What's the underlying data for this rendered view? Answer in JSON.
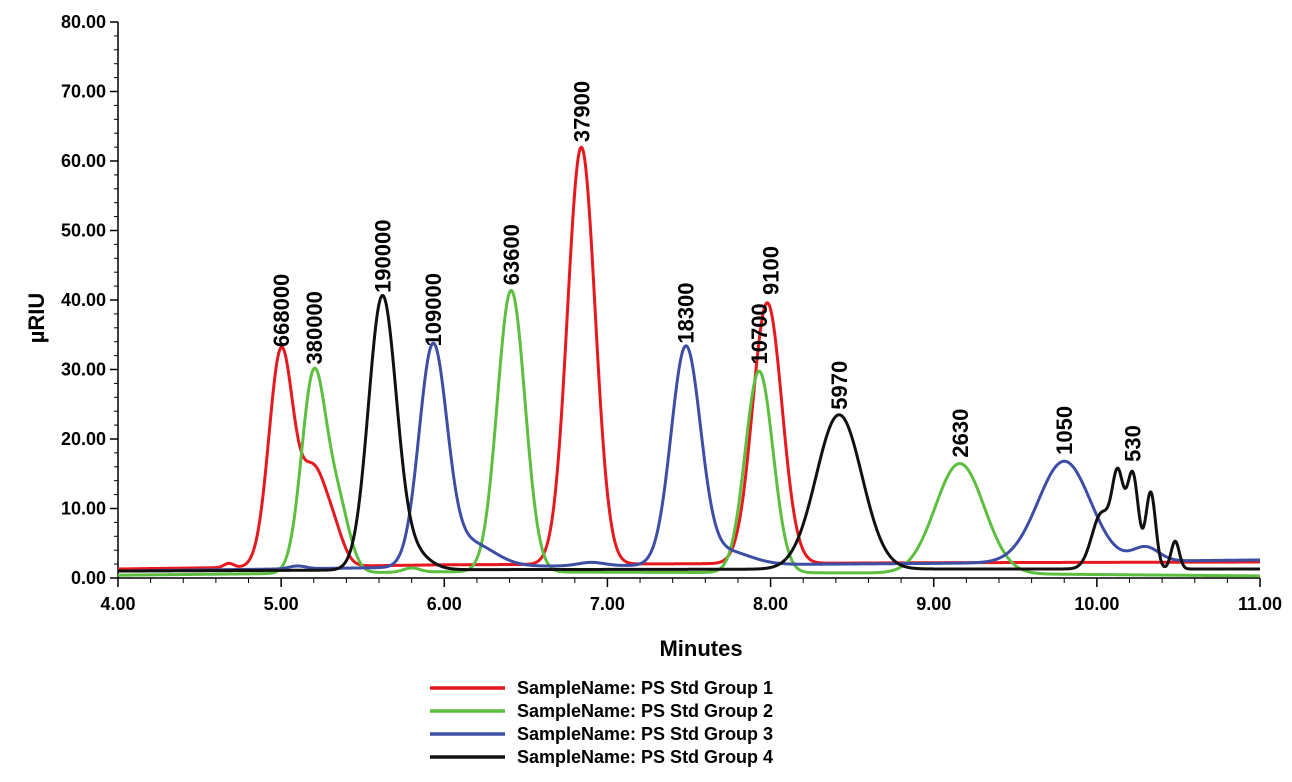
{
  "chart_data": {
    "type": "line",
    "xlabel": "Minutes",
    "ylabel": "µRIU",
    "xlim": [
      4.0,
      11.0
    ],
    "ylim": [
      0.0,
      80.0
    ],
    "x_ticks": [
      "4.00",
      "5.00",
      "6.00",
      "7.00",
      "8.00",
      "9.00",
      "10.00",
      "11.00"
    ],
    "y_ticks": [
      "0.00",
      "10.00",
      "20.00",
      "30.00",
      "40.00",
      "50.00",
      "60.00",
      "70.00",
      "80.00"
    ],
    "grid": false,
    "legend_position": "bottom",
    "series": [
      {
        "name": "SampleName: PS Std Group 1",
        "color": "#e8191e",
        "baseline": [
          [
            4.0,
            1.3
          ],
          [
            6.0,
            1.9
          ],
          [
            9.0,
            2.2
          ],
          [
            11.0,
            2.3
          ]
        ],
        "peaks": [
          {
            "x": 4.68,
            "y": 0.6,
            "w": 0.03
          },
          {
            "x": 5.0,
            "y": 31.0,
            "w": 0.075
          },
          {
            "x": 5.2,
            "y": 13.5,
            "w": 0.08
          },
          {
            "x": 5.33,
            "y": 3.5,
            "w": 0.06
          },
          {
            "x": 6.84,
            "y": 60.0,
            "w": 0.085
          },
          {
            "x": 7.98,
            "y": 37.5,
            "w": 0.09
          }
        ]
      },
      {
        "name": "SampleName: PS Std Group 2",
        "color": "#5cbf3f",
        "baseline": [
          [
            4.0,
            0.4
          ],
          [
            6.0,
            0.9
          ],
          [
            9.0,
            0.7
          ],
          [
            11.0,
            0.3
          ]
        ],
        "peaks": [
          {
            "x": 5.2,
            "y": 28.5,
            "w": 0.075
          },
          {
            "x": 5.35,
            "y": 9.0,
            "w": 0.07
          },
          {
            "x": 5.8,
            "y": 0.6,
            "w": 0.05
          },
          {
            "x": 6.41,
            "y": 40.5,
            "w": 0.085
          },
          {
            "x": 7.93,
            "y": 29.0,
            "w": 0.085
          },
          {
            "x": 9.16,
            "y": 15.8,
            "w": 0.15
          }
        ]
      },
      {
        "name": "SampleName: PS Std Group 3",
        "color": "#3d4ea5",
        "baseline": [
          [
            4.0,
            1.0
          ],
          [
            6.0,
            1.6
          ],
          [
            9.0,
            2.1
          ],
          [
            11.0,
            2.6
          ]
        ],
        "peaks": [
          {
            "x": 5.1,
            "y": 0.4,
            "w": 0.05
          },
          {
            "x": 5.93,
            "y": 31.0,
            "w": 0.085
          },
          {
            "x": 6.15,
            "y": 3.5,
            "w": 0.15
          },
          {
            "x": 6.9,
            "y": 0.5,
            "w": 0.08
          },
          {
            "x": 7.48,
            "y": 31.0,
            "w": 0.09
          },
          {
            "x": 7.72,
            "y": 2.0,
            "w": 0.15
          },
          {
            "x": 9.8,
            "y": 14.5,
            "w": 0.16
          },
          {
            "x": 10.3,
            "y": 2.0,
            "w": 0.08
          }
        ]
      },
      {
        "name": "SampleName: PS Std Group 4",
        "color": "#111111",
        "baseline": [
          [
            4.0,
            1.0
          ],
          [
            6.0,
            1.2
          ],
          [
            9.0,
            1.3
          ],
          [
            11.0,
            1.3
          ]
        ],
        "peaks": [
          {
            "x": 5.62,
            "y": 39.0,
            "w": 0.085
          },
          {
            "x": 5.8,
            "y": 2.5,
            "w": 0.1
          },
          {
            "x": 8.42,
            "y": 22.2,
            "w": 0.14
          },
          {
            "x": 10.03,
            "y": 8.0,
            "w": 0.06
          },
          {
            "x": 10.13,
            "y": 12.0,
            "w": 0.035
          },
          {
            "x": 10.22,
            "y": 13.5,
            "w": 0.035
          },
          {
            "x": 10.33,
            "y": 11.0,
            "w": 0.03
          },
          {
            "x": 10.48,
            "y": 4.0,
            "w": 0.025
          }
        ]
      }
    ],
    "annotations": [
      {
        "text": "668000",
        "x": 5.0,
        "y": 32.5
      },
      {
        "text": "380000",
        "x": 5.2,
        "y": 30.0
      },
      {
        "text": "190000",
        "x": 5.62,
        "y": 40.3
      },
      {
        "text": "109000",
        "x": 5.93,
        "y": 32.6
      },
      {
        "text": "63600",
        "x": 6.41,
        "y": 41.4
      },
      {
        "text": "37900",
        "x": 6.84,
        "y": 62.0
      },
      {
        "text": "18300",
        "x": 7.48,
        "y": 33.0
      },
      {
        "text": "10700",
        "x": 7.93,
        "y": 30.0
      },
      {
        "text": "9100",
        "x": 8.0,
        "y": 40.0
      },
      {
        "text": "5970",
        "x": 8.42,
        "y": 23.5
      },
      {
        "text": "2630",
        "x": 9.16,
        "y": 16.6
      },
      {
        "text": "1050",
        "x": 9.8,
        "y": 17.0
      },
      {
        "text": "530",
        "x": 10.22,
        "y": 16.0
      }
    ]
  }
}
